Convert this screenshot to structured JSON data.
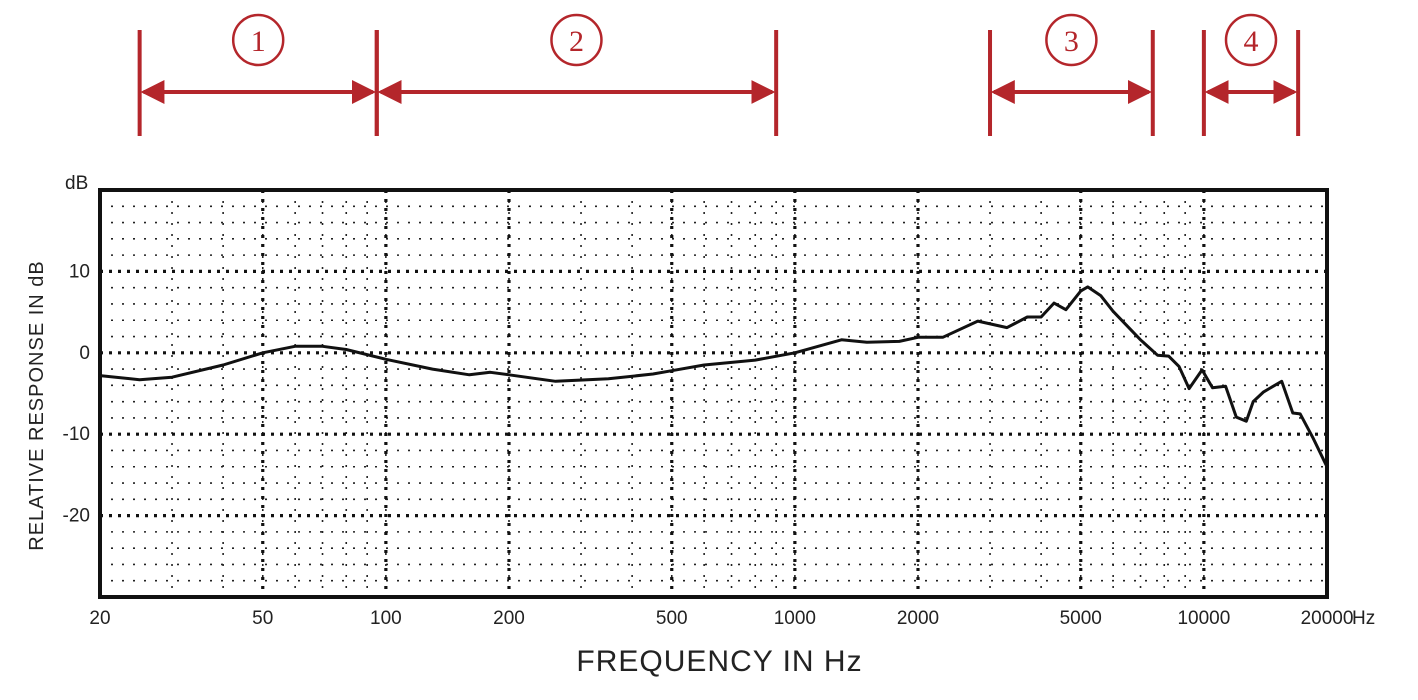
{
  "chart_data": {
    "type": "line",
    "title": "",
    "xlabel": "FREQUENCY IN Hz",
    "ylabel": "RELATIVE RESPONSE IN dB",
    "x_scale": "log",
    "xlim": [
      20,
      20000
    ],
    "ylim": [
      -30,
      20
    ],
    "x_unit": "Hz",
    "y_unit": "dB",
    "x_ticks": [
      20,
      50,
      100,
      200,
      500,
      1000,
      2000,
      5000,
      10000,
      20000
    ],
    "x_tick_labels": [
      "20",
      "50",
      "100",
      "200",
      "500",
      "1000",
      "2000",
      "5000",
      "10000",
      "20000"
    ],
    "y_ticks": [
      10,
      0,
      -10,
      -20
    ],
    "y_tick_labels": [
      "10",
      "0",
      "-10",
      "-20"
    ],
    "grid": true,
    "line_color": "#111111",
    "series": [
      {
        "x": [
          20,
          25,
          30,
          40,
          50,
          60,
          70,
          80,
          100,
          130,
          160,
          180,
          200,
          260,
          350,
          450,
          500,
          600,
          800,
          1000,
          1300,
          1500,
          1800,
          2000,
          2300,
          2800,
          3300,
          3700,
          4000,
          4300,
          4600,
          5000,
          5200,
          5600,
          6000,
          7000,
          7700,
          8200,
          8700,
          9200,
          9900,
          10500,
          11300,
          12000,
          12700,
          13200,
          14000,
          15500,
          16500,
          17200,
          18500,
          20000
        ],
        "y": [
          -2.8,
          -3.3,
          -3.0,
          -1.5,
          0.0,
          0.8,
          0.8,
          0.4,
          -0.8,
          -2.0,
          -2.7,
          -2.4,
          -2.7,
          -3.5,
          -3.2,
          -2.6,
          -2.2,
          -1.5,
          -0.9,
          0.0,
          1.6,
          1.3,
          1.4,
          1.9,
          1.9,
          3.9,
          3.1,
          4.4,
          4.4,
          6.1,
          5.3,
          7.6,
          8.1,
          7.0,
          5.1,
          1.6,
          -0.3,
          -0.4,
          -1.7,
          -4.4,
          -2.1,
          -4.3,
          -4.1,
          -7.9,
          -8.4,
          -6.0,
          -4.8,
          -3.5,
          -7.4,
          -7.5,
          -10.5,
          -14.0
        ]
      }
    ],
    "annotations": [
      {
        "label": "①",
        "x_start": 25,
        "x_end": 95,
        "color": "#b4262b"
      },
      {
        "label": "②",
        "x_start": 95,
        "x_end": 900,
        "color": "#b4262b"
      },
      {
        "label": "③",
        "x_start": 3000,
        "x_end": 7500,
        "color": "#b4262b"
      },
      {
        "label": "④",
        "x_start": 10000,
        "x_end": 17000,
        "color": "#b4262b"
      }
    ]
  }
}
